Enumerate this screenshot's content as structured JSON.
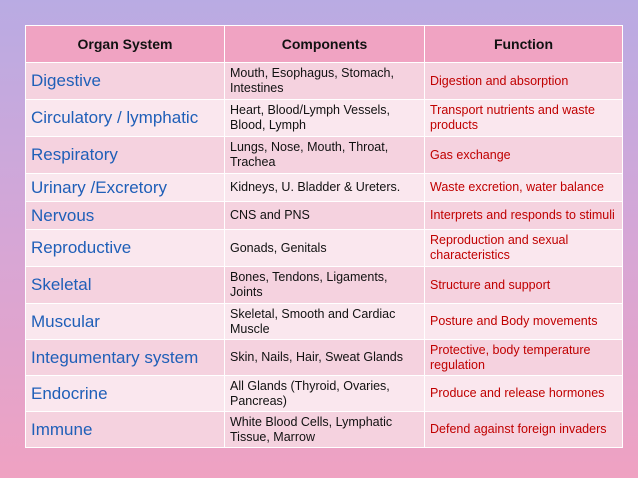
{
  "table": {
    "header": [
      "Organ System",
      "Components",
      "Function"
    ],
    "rows": [
      [
        "Digestive",
        "Mouth, Esophagus, Stomach, Intestines",
        "Digestion and absorption"
      ],
      [
        "Circulatory / lymphatic",
        "Heart, Blood/Lymph Vessels, Blood, Lymph",
        "Transport nutrients and waste products"
      ],
      [
        "Respiratory",
        "Lungs, Nose, Mouth, Throat, Trachea",
        "Gas exchange"
      ],
      [
        "Urinary /Excretory",
        "Kidneys, U. Bladder & Ureters.",
        "Waste excretion, water balance"
      ],
      [
        "Nervous",
        "CNS and PNS",
        "Interprets and responds to stimuli"
      ],
      [
        "Reproductive",
        "Gonads, Genitals",
        "Reproduction and sexual characteristics"
      ],
      [
        "Skeletal",
        "Bones, Tendons, Ligaments, Joints",
        "Structure and support"
      ],
      [
        "Muscular",
        "Skeletal, Smooth and Cardiac Muscle",
        "Posture and Body movements"
      ],
      [
        "Integumentary system",
        "Skin, Nails, Hair, Sweat Glands",
        "Protective, body temperature regulation"
      ],
      [
        "Endocrine",
        "All Glands (Thyroid, Ovaries, Pancreas)",
        "Produce and release hormones"
      ],
      [
        "Immune",
        "White Blood Cells, Lymphatic Tissue, Marrow",
        "Defend against foreign invaders"
      ]
    ]
  }
}
